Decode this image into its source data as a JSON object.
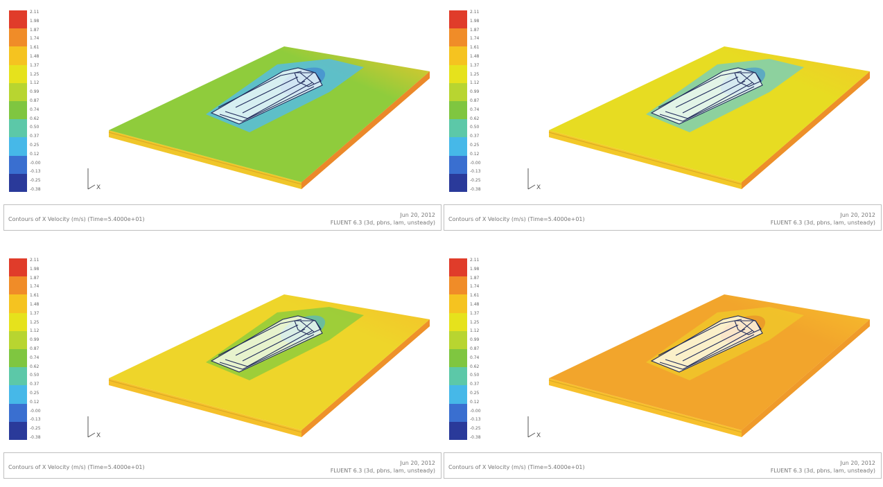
{
  "colorbar": {
    "ticks": [
      "2.11",
      "1.98",
      "1.87",
      "1.74",
      "1.61",
      "1.48",
      "1.37",
      "1.25",
      "1.12",
      "0.99",
      "0.87",
      "0.74",
      "0.62",
      "0.50",
      "0.37",
      "0.25",
      "0.12",
      "-0.00",
      "-0.13",
      "-0.25",
      "-0.38"
    ],
    "colors": [
      "#2a3a9a",
      "#3a6fd0",
      "#46b8e8",
      "#5cc8a8",
      "#7fc640",
      "#b8d530",
      "#e6e21c",
      "#f5c320",
      "#f08c28",
      "#e03c2a"
    ]
  },
  "panels": [
    {
      "caption": "Contours of X Velocity (m/s) (Time=5.4000e+01)",
      "date": "Jun 20, 2012",
      "software": "FLUENT 6.3 (3d, pbns, lam, unsteady)",
      "axis_label": "X",
      "colors": {
        "slab_top": "#8fcc3c",
        "slab_side": "#f0c62a",
        "slab_edge": "#e8552a",
        "halo": "#56bce0",
        "halo_inner": "#3d7fd4"
      }
    },
    {
      "caption": "Contours of X Velocity (m/s) (Time=5.4000e+01)",
      "date": "Jun 20, 2012",
      "software": "FLUENT 6.3 (3d, pbns, lam, unsteady)",
      "axis_label": "X",
      "colors": {
        "slab_top": "#e7dc22",
        "slab_side": "#f3c828",
        "slab_edge": "#e8602a",
        "halo": "#7ccfb4",
        "halo_inner": "#3d8fd8"
      }
    },
    {
      "caption": "Contours of X Velocity (m/s) (Time=5.4000e+01)",
      "date": "Jun 20, 2012",
      "software": "FLUENT 6.3 (3d, pbns, lam, unsteady)",
      "axis_label": "X",
      "colors": {
        "slab_top": "#eed52a",
        "slab_side": "#f5c02a",
        "slab_edge": "#e86a2a",
        "halo": "#8fcc3c",
        "halo_inner": "#4ab0e0"
      }
    },
    {
      "caption": "Contours of X Velocity (m/s) (Time=5.4000e+01)",
      "date": "Jun 20, 2012",
      "software": "FLUENT 6.3 (3d, pbns, lam, unsteady)",
      "axis_label": "X",
      "colors": {
        "slab_top": "#f2a52c",
        "slab_side": "#f7c02c",
        "slab_edge": "#ea7a2a",
        "halo": "#f0c62a",
        "halo_inner": "#e8852a"
      }
    }
  ]
}
